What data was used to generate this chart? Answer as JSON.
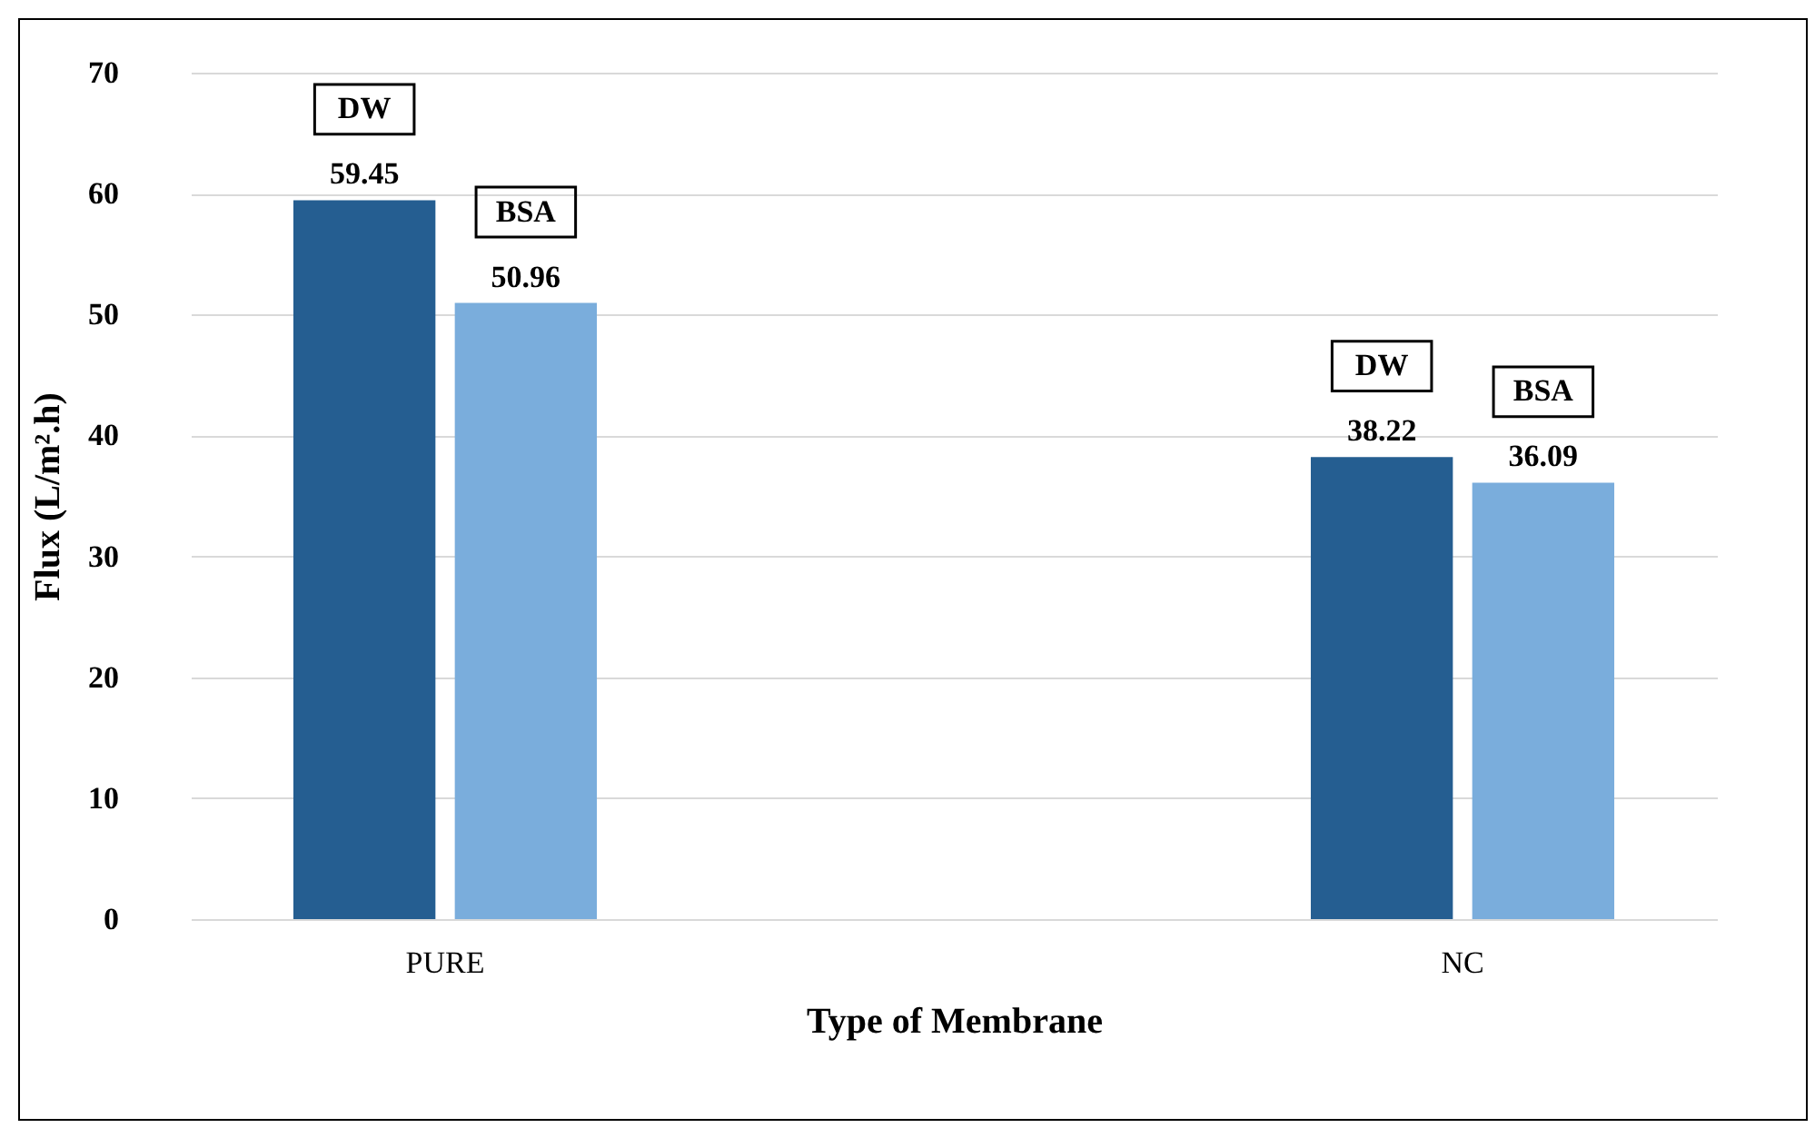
{
  "chart_data": {
    "type": "bar",
    "xlabel": "Type of Membrane",
    "ylabel": "Flux (L/m².h)",
    "categories": [
      "PURE",
      "NC"
    ],
    "series": [
      {
        "name": "DW",
        "color": "#255e91",
        "values": [
          59.45,
          38.22
        ]
      },
      {
        "name": "BSA",
        "color": "#7aaddc",
        "values": [
          50.96,
          36.09
        ]
      }
    ],
    "ylim": [
      0,
      70
    ],
    "yticks": [
      0,
      10,
      20,
      30,
      40,
      50,
      60,
      70
    ],
    "grid": "y",
    "data_labels": true,
    "legend": false
  }
}
